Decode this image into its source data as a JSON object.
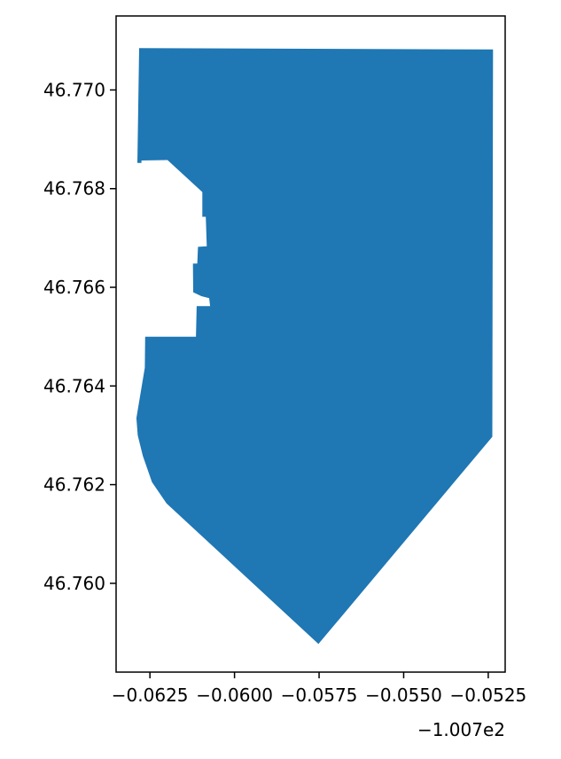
{
  "chart_data": {
    "type": "area",
    "title": "",
    "xlabel": "",
    "ylabel": "",
    "x_offset_label": "−1.007e2",
    "xlim": [
      -0.0635,
      -0.052
    ],
    "ylim": [
      46.7582,
      46.7715
    ],
    "grid": false,
    "fill_color": "#1f77b4",
    "x_ticks": [
      -0.0625,
      -0.06,
      -0.0575,
      -0.055,
      -0.0525
    ],
    "x_tick_labels": [
      "−0.0625",
      "−0.0600",
      "−0.0575",
      "−0.0550",
      "−0.0525"
    ],
    "y_ticks": [
      46.76,
      46.762,
      46.764,
      46.766,
      46.768,
      46.77
    ],
    "y_tick_labels": [
      "46.760",
      "46.762",
      "46.764",
      "46.766",
      "46.768",
      "46.770"
    ],
    "polygon": [
      [
        -0.06282,
        46.77085
      ],
      [
        -0.05236,
        46.77082
      ],
      [
        -0.05238,
        46.76297
      ],
      [
        -0.05752,
        46.75877
      ],
      [
        -0.06201,
        46.76162
      ],
      [
        -0.06244,
        46.76205
      ],
      [
        -0.06271,
        46.76258
      ],
      [
        -0.06286,
        46.763
      ],
      [
        -0.0629,
        46.76335
      ],
      [
        -0.06265,
        46.76437
      ],
      [
        -0.06264,
        46.765
      ],
      [
        -0.06114,
        46.765
      ],
      [
        -0.06112,
        46.76562
      ],
      [
        -0.06072,
        46.76562
      ],
      [
        -0.06075,
        46.76578
      ],
      [
        -0.06098,
        46.76582
      ],
      [
        -0.06122,
        46.7659
      ],
      [
        -0.06123,
        46.76648
      ],
      [
        -0.0611,
        46.76648
      ],
      [
        -0.06108,
        46.76682
      ],
      [
        -0.06082,
        46.76683
      ],
      [
        -0.06085,
        46.76743
      ],
      [
        -0.06095,
        46.76743
      ],
      [
        -0.06095,
        46.76793
      ],
      [
        -0.06198,
        46.76858
      ],
      [
        -0.06275,
        46.76857
      ],
      [
        -0.06275,
        46.76852
      ],
      [
        -0.06287,
        46.76852
      ]
    ]
  }
}
